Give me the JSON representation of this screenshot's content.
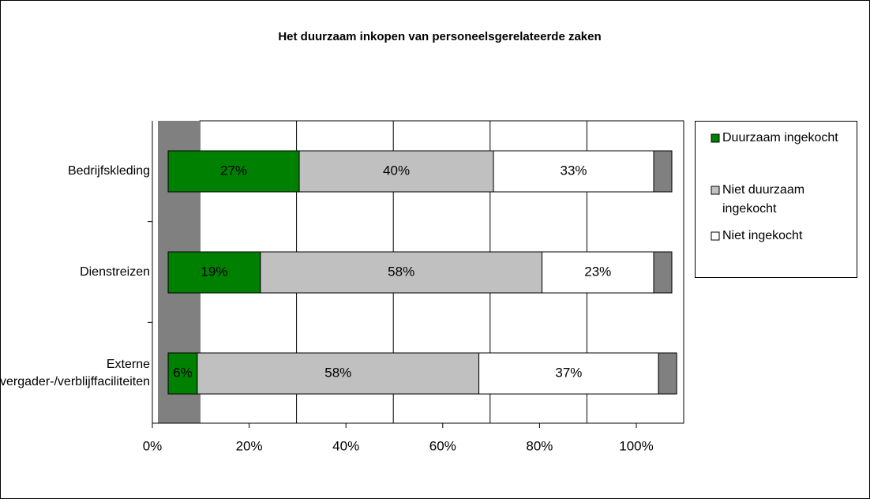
{
  "chart_data": {
    "type": "stacked-barh",
    "title": "Het duurzaam inkopen van personeelsgerelateerde zaken",
    "categories": [
      "Bedrijfskleding",
      "Dienstreizen",
      "Externe vergader-/verblijffaciliteiten"
    ],
    "series": [
      {
        "name": "Duurzaam ingekocht",
        "color": "#008000",
        "values": [
          27,
          19,
          6
        ],
        "value_labels": [
          "27%",
          "19%",
          "6%"
        ]
      },
      {
        "name": "Niet duurzaam ingekocht",
        "color": "#c0c0c0",
        "values": [
          40,
          58,
          58
        ],
        "value_labels": [
          "40%",
          "58%",
          "58%"
        ]
      },
      {
        "name": "Niet ingekocht",
        "color": "#ffffff",
        "values": [
          33,
          23,
          37
        ],
        "value_labels": [
          "33%",
          "23%",
          "37%"
        ]
      }
    ],
    "xlim": [
      0,
      100
    ],
    "xticks": [
      {
        "value": 0,
        "label": "0%"
      },
      {
        "value": 20,
        "label": "20%"
      },
      {
        "value": 40,
        "label": "40%"
      },
      {
        "value": 60,
        "label": "60%"
      },
      {
        "value": 80,
        "label": "80%"
      },
      {
        "value": 100,
        "label": "100%"
      }
    ],
    "grid": true,
    "legend": "right"
  }
}
